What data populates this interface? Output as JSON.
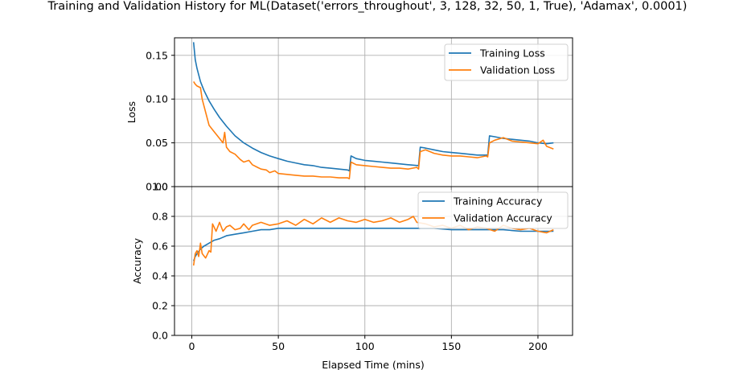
{
  "chart_data": {
    "type": "line",
    "title": "Training and Validation History for ML(Dataset('errors_throughout', 3, 128, 32, 50, 1, True), 'Adamax', 0.0001)",
    "xlabel": "Elapsed Time (mins)",
    "xlim": [
      -10,
      220
    ],
    "x_ticks": [
      0,
      50,
      100,
      150,
      200
    ],
    "grid": true,
    "colors": {
      "training": "#1f77b4",
      "validation": "#ff7f0e"
    },
    "panels": [
      {
        "ylabel": "Loss",
        "ylim": [
          0.0,
          0.17
        ],
        "y_ticks": [
          0.0,
          0.05,
          0.1,
          0.15
        ],
        "y_tick_labels": [
          "0.00",
          "0.05",
          "0.10",
          "0.15"
        ],
        "legend_placement": "upper right",
        "series": [
          {
            "name": "Training Loss",
            "color": "#1f77b4",
            "x": [
              1,
              2,
              3,
              5,
              7,
              10,
              13,
              16,
              20,
              25,
              30,
              35,
              40,
              45,
              50,
              55,
              60,
              65,
              70,
              75,
              80,
              85,
              90,
              91,
              92,
              95,
              100,
              105,
              110,
              115,
              120,
              125,
              131,
              132,
              135,
              140,
              145,
              150,
              155,
              160,
              165,
              171,
              172,
              175,
              180,
              185,
              190,
              195,
              200,
              205,
              209
            ],
            "y": [
              0.165,
              0.145,
              0.135,
              0.12,
              0.11,
              0.098,
              0.088,
              0.079,
              0.069,
              0.058,
              0.05,
              0.044,
              0.039,
              0.035,
              0.032,
              0.029,
              0.027,
              0.025,
              0.024,
              0.022,
              0.021,
              0.02,
              0.019,
              0.018,
              0.035,
              0.032,
              0.03,
              0.029,
              0.028,
              0.027,
              0.026,
              0.025,
              0.024,
              0.045,
              0.044,
              0.042,
              0.04,
              0.039,
              0.038,
              0.037,
              0.036,
              0.036,
              0.058,
              0.057,
              0.055,
              0.054,
              0.053,
              0.052,
              0.05,
              0.049,
              0.05
            ]
          },
          {
            "name": "Validation Loss",
            "color": "#ff7f0e",
            "x": [
              1,
              2,
              3,
              5,
              6,
              8,
              10,
              12,
              14,
              16,
              18,
              19,
              20,
              22,
              25,
              28,
              30,
              33,
              35,
              38,
              40,
              43,
              45,
              48,
              50,
              55,
              60,
              65,
              70,
              75,
              80,
              85,
              90,
              91,
              92,
              95,
              100,
              105,
              110,
              115,
              120,
              125,
              130,
              131,
              132,
              135,
              140,
              145,
              150,
              155,
              160,
              165,
              170,
              171,
              172,
              175,
              180,
              185,
              190,
              195,
              200,
              203,
              205,
              209
            ],
            "y": [
              0.12,
              0.117,
              0.115,
              0.113,
              0.1,
              0.085,
              0.07,
              0.065,
              0.06,
              0.055,
              0.05,
              0.062,
              0.045,
              0.04,
              0.037,
              0.031,
              0.028,
              0.03,
              0.025,
              0.022,
              0.02,
              0.019,
              0.016,
              0.018,
              0.015,
              0.014,
              0.013,
              0.012,
              0.012,
              0.011,
              0.011,
              0.01,
              0.01,
              0.009,
              0.028,
              0.025,
              0.024,
              0.023,
              0.022,
              0.021,
              0.021,
              0.02,
              0.022,
              0.02,
              0.04,
              0.042,
              0.038,
              0.036,
              0.035,
              0.035,
              0.034,
              0.033,
              0.035,
              0.034,
              0.05,
              0.053,
              0.056,
              0.052,
              0.051,
              0.05,
              0.049,
              0.053,
              0.046,
              0.043
            ]
          }
        ]
      },
      {
        "ylabel": "Accuracy",
        "ylim": [
          0.0,
          1.0
        ],
        "y_ticks": [
          0.0,
          0.2,
          0.4,
          0.6,
          0.8,
          1.0
        ],
        "y_tick_labels": [
          "0.0",
          "0.2",
          "0.4",
          "0.6",
          "0.8",
          "1.0"
        ],
        "legend_placement": "upper right",
        "series": [
          {
            "name": "Training Accuracy",
            "color": "#1f77b4",
            "x": [
              1,
              2,
              3,
              5,
              7,
              10,
              13,
              16,
              20,
              25,
              30,
              35,
              40,
              45,
              50,
              60,
              70,
              80,
              90,
              100,
              110,
              120,
              130,
              140,
              150,
              160,
              170,
              180,
              190,
              200,
              209
            ],
            "y": [
              0.5,
              0.53,
              0.55,
              0.58,
              0.6,
              0.62,
              0.64,
              0.65,
              0.67,
              0.68,
              0.69,
              0.7,
              0.71,
              0.71,
              0.72,
              0.72,
              0.72,
              0.72,
              0.72,
              0.72,
              0.72,
              0.72,
              0.72,
              0.72,
              0.71,
              0.71,
              0.71,
              0.71,
              0.7,
              0.7,
              0.7
            ]
          },
          {
            "name": "Validation Accuracy",
            "color": "#ff7f0e",
            "x": [
              1,
              2,
              3,
              4,
              5,
              6,
              8,
              10,
              11,
              12,
              14,
              16,
              18,
              20,
              22,
              25,
              28,
              30,
              33,
              35,
              40,
              45,
              50,
              55,
              60,
              65,
              70,
              75,
              80,
              85,
              90,
              95,
              100,
              105,
              110,
              115,
              120,
              125,
              128,
              130,
              135,
              140,
              145,
              150,
              155,
              160,
              165,
              170,
              175,
              180,
              185,
              190,
              195,
              200,
              205,
              209
            ],
            "y": [
              0.47,
              0.55,
              0.57,
              0.53,
              0.62,
              0.55,
              0.52,
              0.57,
              0.56,
              0.75,
              0.7,
              0.76,
              0.7,
              0.73,
              0.74,
              0.71,
              0.72,
              0.75,
              0.71,
              0.74,
              0.76,
              0.74,
              0.75,
              0.77,
              0.74,
              0.78,
              0.75,
              0.79,
              0.76,
              0.79,
              0.77,
              0.76,
              0.78,
              0.76,
              0.77,
              0.79,
              0.76,
              0.78,
              0.8,
              0.76,
              0.75,
              0.73,
              0.74,
              0.72,
              0.74,
              0.71,
              0.73,
              0.72,
              0.7,
              0.74,
              0.72,
              0.71,
              0.72,
              0.7,
              0.69,
              0.71
            ]
          }
        ]
      }
    ]
  }
}
